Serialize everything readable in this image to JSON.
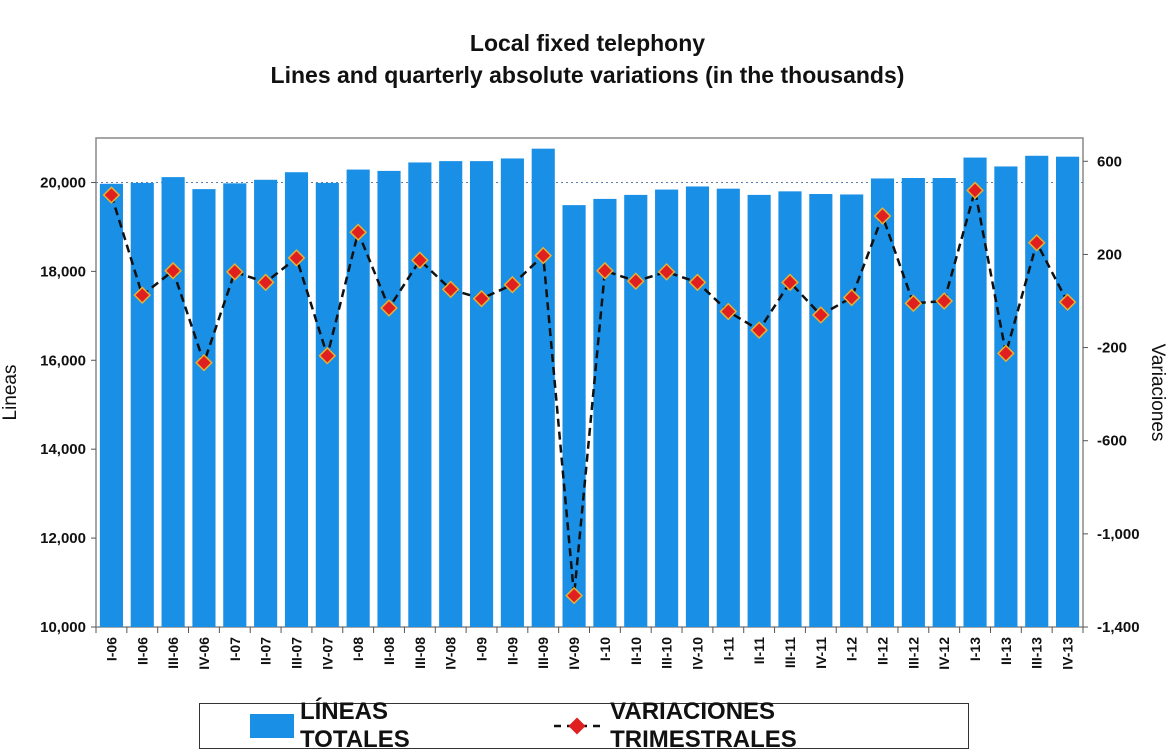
{
  "chart_data": {
    "type": "bar+line",
    "title": "Local fixed telephony",
    "subtitle": "Lines and quarterly absolute variations (in the thousands)",
    "categories": [
      "I-06",
      "II-06",
      "III-06",
      "IV-06",
      "I-07",
      "II-07",
      "III-07",
      "IV-07",
      "I-08",
      "II-08",
      "III-08",
      "IV-08",
      "I-09",
      "II-09",
      "III-09",
      "IV-09",
      "I-10",
      "II-10",
      "III-10",
      "IV-10",
      "I-11",
      "II-11",
      "III-11",
      "IV-11",
      "I-12",
      "II-12",
      "III-12",
      "IV-12",
      "I-13",
      "II-13",
      "III-13",
      "IV-13"
    ],
    "series": [
      {
        "name": "LÍNEAS  TOTALES",
        "type": "bar",
        "axis": "left",
        "color": "#1a8fe6",
        "values": [
          19970,
          19990,
          20120,
          19850,
          19980,
          20060,
          20230,
          19990,
          20290,
          20260,
          20450,
          20480,
          20480,
          20540,
          20760,
          19490,
          19630,
          19720,
          19840,
          19910,
          19860,
          19720,
          19800,
          19740,
          19730,
          20090,
          20100,
          20100,
          20560,
          20360,
          20600,
          20580
        ]
      },
      {
        "name": "VARIACIONES TRIMESTRALES",
        "type": "line",
        "axis": "right",
        "color": "#e02020",
        "values": [
          455,
          25,
          130,
          -265,
          125,
          80,
          185,
          -235,
          295,
          -30,
          175,
          50,
          10,
          70,
          195,
          -1265,
          130,
          85,
          125,
          80,
          -45,
          -125,
          80,
          -60,
          15,
          365,
          -10,
          0,
          475,
          -225,
          250,
          -5
        ]
      }
    ],
    "ylabel": "Lineas",
    "y2label": "Variaciones",
    "ylim": [
      10000,
      21000
    ],
    "y2lim": [
      -1400,
      700
    ],
    "yticks": [
      "10,000",
      "12,000",
      "14,000",
      "16,000",
      "18,000",
      "20,000"
    ],
    "y2ticks": [
      "-1,400",
      "-1,000",
      "-600",
      "-200",
      "200",
      "600"
    ],
    "reference_line": 20000,
    "legend_position": "bottom"
  },
  "legend": {
    "bars_label": "LÍNEAS  TOTALES",
    "line_label": "VARIACIONES TRIMESTRALES"
  }
}
